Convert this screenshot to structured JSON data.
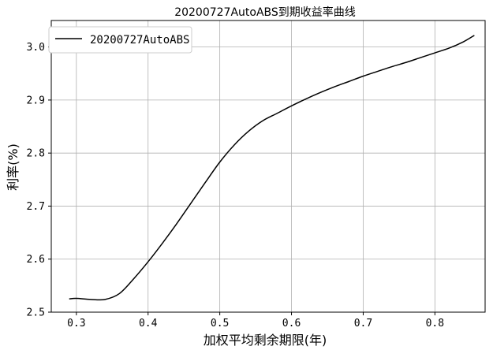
{
  "chart_data": {
    "type": "line",
    "title": "20200727AutoABS到期收益率曲线",
    "xlabel": "加权平均剩余期限(年)",
    "ylabel": "利率(%)",
    "xlim": [
      0.265,
      0.87
    ],
    "ylim": [
      2.5,
      3.05
    ],
    "xticks": [
      0.3,
      0.4,
      0.5,
      0.6,
      0.7,
      0.8
    ],
    "yticks": [
      2.5,
      2.6,
      2.7,
      2.8,
      2.9,
      3.0
    ],
    "xtick_labels": [
      "0.3",
      "0.4",
      "0.5",
      "0.6",
      "0.7",
      "0.8"
    ],
    "ytick_labels": [
      "2.5",
      "2.6",
      "2.7",
      "2.8",
      "2.9",
      "3.0"
    ],
    "grid": true,
    "legend_position": "top-left",
    "series": [
      {
        "name": "20200727AutoABS",
        "color": "#000000",
        "x": [
          0.29,
          0.3,
          0.32,
          0.34,
          0.36,
          0.38,
          0.4,
          0.42,
          0.44,
          0.46,
          0.48,
          0.5,
          0.52,
          0.54,
          0.56,
          0.58,
          0.6,
          0.62,
          0.64,
          0.66,
          0.68,
          0.7,
          0.72,
          0.74,
          0.76,
          0.78,
          0.8,
          0.82,
          0.84,
          0.855
        ],
        "y": [
          2.525,
          2.526,
          2.524,
          2.524,
          2.535,
          2.563,
          2.595,
          2.63,
          2.667,
          2.706,
          2.745,
          2.783,
          2.815,
          2.841,
          2.861,
          2.875,
          2.889,
          2.902,
          2.914,
          2.925,
          2.935,
          2.945,
          2.954,
          2.963,
          2.971,
          2.98,
          2.989,
          2.998,
          3.01,
          3.022
        ]
      }
    ]
  }
}
